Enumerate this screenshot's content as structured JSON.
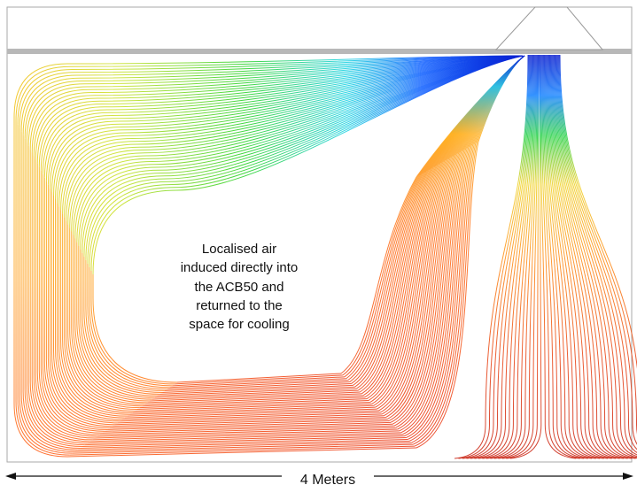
{
  "annotation": {
    "lines": [
      "Localised air",
      "induced directly into",
      "the ACB50 and",
      "returned to the",
      "space for cooling"
    ]
  },
  "dimension": {
    "label": "4 Meters"
  }
}
